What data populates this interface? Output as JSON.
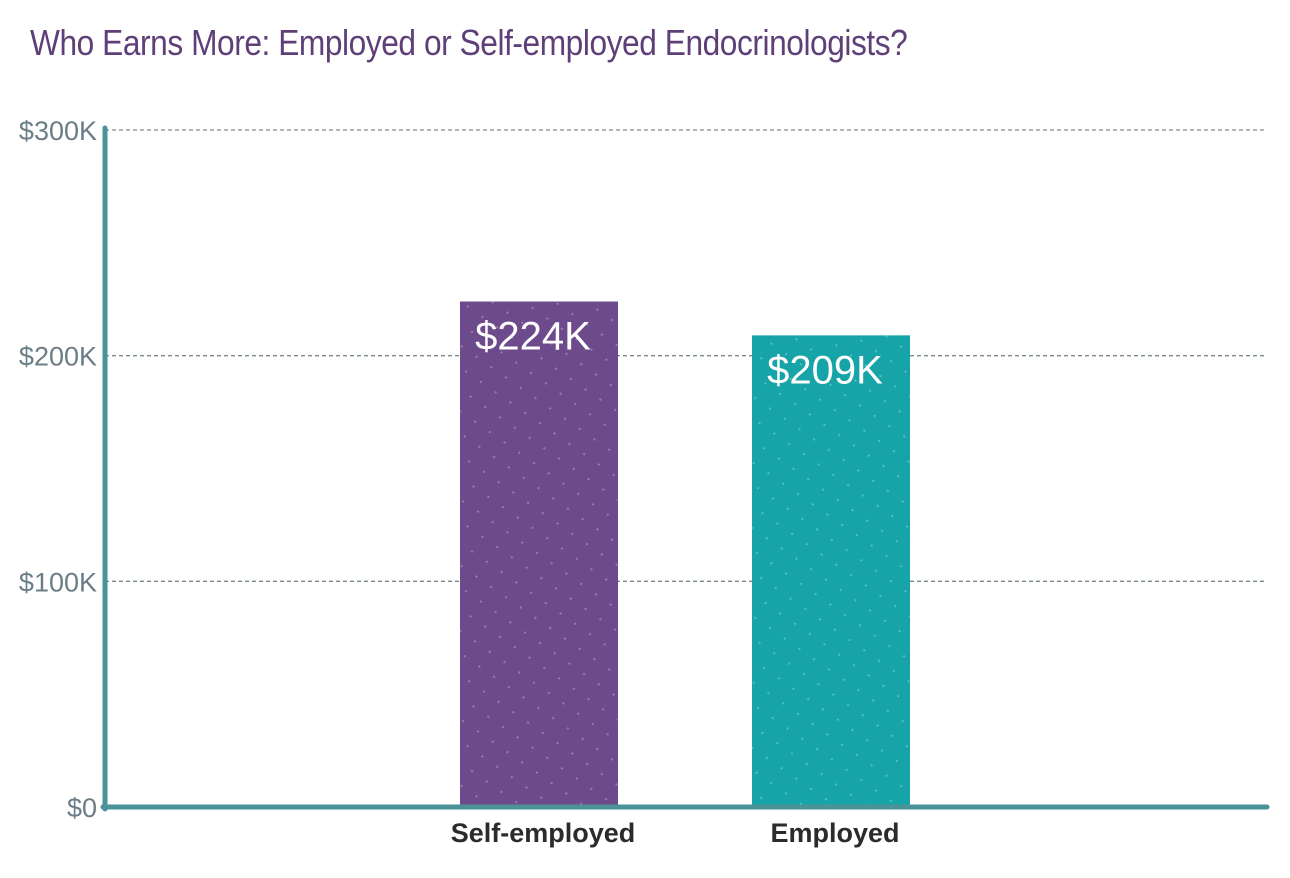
{
  "chart_data": {
    "type": "bar",
    "title": "Who Earns More: Employed or Self-employed Endocrinologists?",
    "categories": [
      "Self-employed",
      "Employed"
    ],
    "values": [
      224,
      209
    ],
    "value_labels": [
      "$224K",
      "$209K"
    ],
    "bar_colors": [
      "#6d4a8c",
      "#17a4a8"
    ],
    "ylim": [
      0,
      300
    ],
    "yticks": [
      0,
      100,
      200,
      300
    ],
    "ytick_labels": [
      "$0",
      "$100K",
      "$200K",
      "$300K"
    ],
    "xlabel": "",
    "ylabel": "",
    "grid": true,
    "axis_color": "#4a9399",
    "title_color": "#5f3f78"
  }
}
